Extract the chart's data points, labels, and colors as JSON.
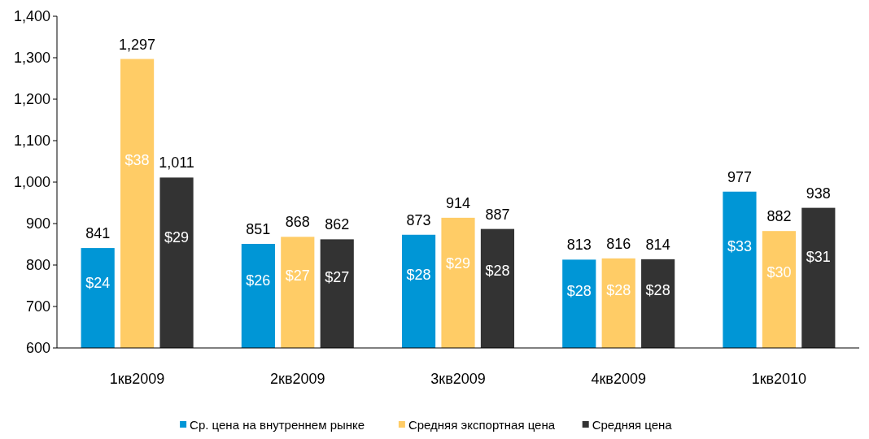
{
  "chart_data": {
    "type": "bar",
    "categories": [
      "1кв2009",
      "2кв2009",
      "3кв2009",
      "4кв2009",
      "1кв2010"
    ],
    "series": [
      {
        "name": "Ср. цена на внутреннем рынке",
        "color": "#0096d6",
        "values": [
          841,
          851,
          873,
          813,
          977
        ],
        "value_labels": [
          "841",
          "851",
          "873",
          "813",
          "977"
        ]
      },
      {
        "name": "Средняя экспортная цена",
        "color": "#ffcc66",
        "values": [
          1297,
          868,
          914,
          816,
          882
        ],
        "value_labels": [
          "1,297",
          "868",
          "914",
          "816",
          "882"
        ]
      },
      {
        "name": "Средняя цена",
        "color": "#333333",
        "values": [
          1011,
          862,
          887,
          814,
          938
        ],
        "value_labels": [
          "1,011",
          "862",
          "887",
          "814",
          "938"
        ]
      }
    ],
    "annotations": [
      "$24",
      "$38",
      "$29",
      "$26",
      "$27",
      "$27",
      "$28",
      "$29",
      "$28",
      "$28",
      "$28",
      "$28",
      "$33",
      "$30",
      "$31"
    ],
    "ylim": [
      600,
      1400
    ],
    "yticks": [
      600,
      700,
      800,
      900,
      {
        "value": 1000,
        "label": "1,000"
      },
      {
        "value": 1100,
        "label": "1,100"
      },
      {
        "value": 1200,
        "label": "1,200"
      },
      {
        "value": 1300,
        "label": "1,300"
      },
      {
        "value": 1400,
        "label": "1,400"
      }
    ],
    "grid": false,
    "legend": "bottom"
  }
}
